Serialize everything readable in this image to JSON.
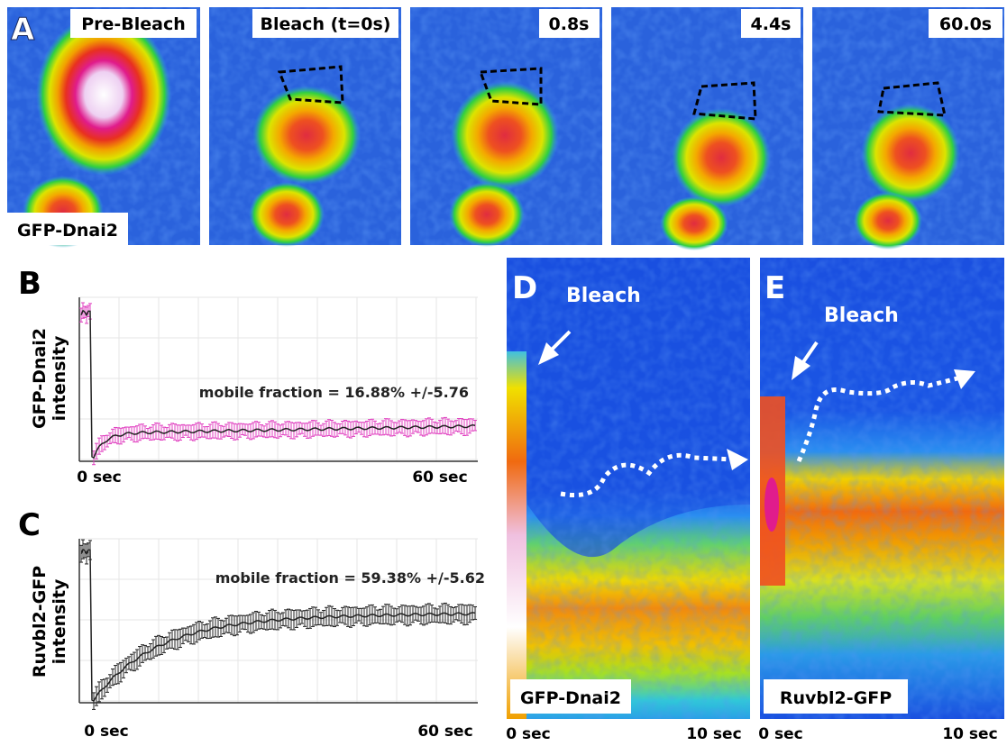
{
  "panel_a": {
    "letter": "A",
    "frames": [
      {
        "label": "Pre-Bleach"
      },
      {
        "label": "Bleach (t=0s)"
      },
      {
        "label": "0.8s"
      },
      {
        "label": "4.4s"
      },
      {
        "label": "60.0s"
      }
    ],
    "stain": "GFP-Dnai2"
  },
  "panel_b": {
    "letter": "B",
    "y_label": [
      "GFP-Dnai2",
      "intensity"
    ],
    "annotation": "mobile fraction = 16.88% +/-5.76",
    "x_start": "0 sec",
    "x_end": "60 sec"
  },
  "panel_c": {
    "letter": "C",
    "y_label": [
      "Ruvbl2-GFP",
      "intensity"
    ],
    "annotation": "mobile fraction = 59.38% +/-5.62",
    "x_start": "0 sec",
    "x_end": "60 sec"
  },
  "panel_d": {
    "letter": "D",
    "arrow_label": "Bleach",
    "stain": "GFP-Dnai2",
    "x_start": "0 sec",
    "x_end": "10 sec"
  },
  "panel_e": {
    "letter": "E",
    "arrow_label": "Bleach",
    "stain": "Ruvbl2-GFP",
    "x_start": "0 sec",
    "x_end": "10 sec"
  }
}
